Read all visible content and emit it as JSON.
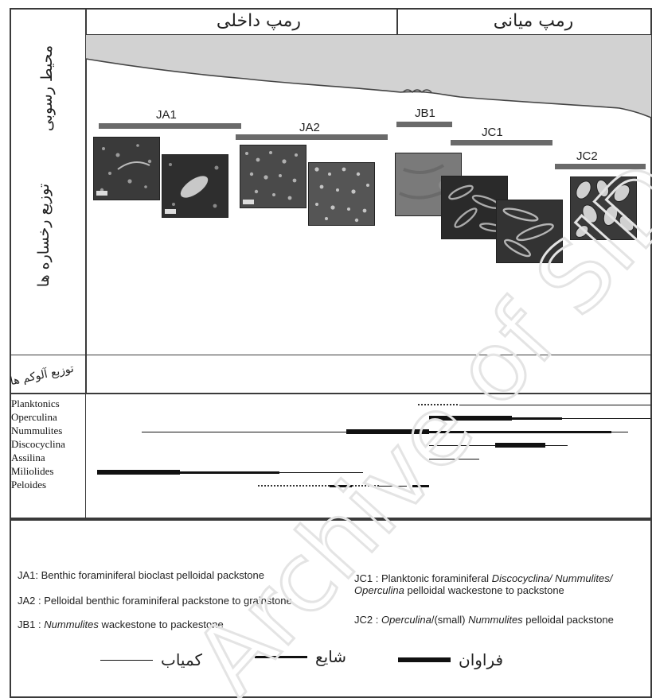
{
  "zones": {
    "inner_ramp": "رمپ داخلی",
    "middle_ramp": "رمپ میانی"
  },
  "row_labels": {
    "environment": "محیط رسوبی",
    "facies_distribution": "توزیع رخساره ها",
    "allochem_distribution": "توزیع آلوکم ها"
  },
  "facies": [
    {
      "code": "JA1"
    },
    {
      "code": "JA2"
    },
    {
      "code": "JB1"
    },
    {
      "code": "JC1"
    },
    {
      "code": "JC2"
    }
  ],
  "allochems": {
    "names": [
      "Planktonics",
      "Operculina",
      "Nummulites",
      "Discocyclina",
      "Assilina",
      "Miliolides",
      "Peloides"
    ],
    "ranges": [
      [
        {
          "from": 0.58,
          "to": 0.655,
          "level": "dotted"
        },
        {
          "from": 0.655,
          "to": 1.0,
          "level": "rare"
        }
      ],
      [
        {
          "from": 0.6,
          "to": 0.75,
          "level": "abundant"
        },
        {
          "from": 0.75,
          "to": 0.84,
          "level": "common"
        },
        {
          "from": 0.84,
          "to": 1.0,
          "level": "rare"
        }
      ],
      [
        {
          "from": 0.08,
          "to": 0.45,
          "level": "rare"
        },
        {
          "from": 0.45,
          "to": 0.6,
          "level": "abundant"
        },
        {
          "from": 0.6,
          "to": 0.93,
          "level": "common"
        },
        {
          "from": 0.93,
          "to": 0.96,
          "level": "rare"
        }
      ],
      [
        {
          "from": 0.6,
          "to": 0.72,
          "level": "rare"
        },
        {
          "from": 0.72,
          "to": 0.81,
          "level": "abundant"
        },
        {
          "from": 0.81,
          "to": 0.85,
          "level": "rare"
        }
      ],
      [
        {
          "from": 0.6,
          "to": 0.69,
          "level": "rare"
        }
      ],
      [
        {
          "from": 0.0,
          "to": 0.15,
          "level": "abundant"
        },
        {
          "from": 0.15,
          "to": 0.33,
          "level": "common"
        },
        {
          "from": 0.33,
          "to": 0.48,
          "level": "rare"
        }
      ],
      [
        {
          "from": 0.29,
          "to": 0.42,
          "level": "dotted"
        },
        {
          "from": 0.42,
          "to": 0.46,
          "level": "common"
        },
        {
          "from": 0.46,
          "to": 0.51,
          "level": "dotted"
        },
        {
          "from": 0.51,
          "to": 0.56,
          "level": "rare"
        },
        {
          "from": 0.57,
          "to": 0.6,
          "level": "common"
        }
      ]
    ]
  },
  "legend": {
    "ja1": "JA1: Benthic foraminiferal bioclast pelloidal packstone",
    "ja2": "JA2 : Pelloidal benthic foraminiferal packstone to grainstone",
    "jb1_prefix": "JB1 : ",
    "jb1_italic": "Nummulites",
    "jb1_suffix": " wackestone to packestone",
    "jc1_prefix": "JC1 : Planktonic foraminiferal ",
    "jc1_italic": "Discocyclina/ Nummulites/",
    "jc1_italic2": "Operculina",
    "jc1_suffix": " pelloidal wackestone to packstone",
    "jc2_prefix": "JC2 : ",
    "jc2_italic": "Operculina",
    "jc2_mid": "/(small) ",
    "jc2_italic2": "Nummulites",
    "jc2_suffix": " pelloidal packstone"
  },
  "abundance_key": {
    "abundant": "فراوان",
    "common": "شایع",
    "rare": "کمیاب"
  },
  "watermark": "Archive of SID",
  "colors": {
    "sea": "#d2d2d2",
    "bar": "#6a6a6a",
    "ink": "#111111"
  }
}
